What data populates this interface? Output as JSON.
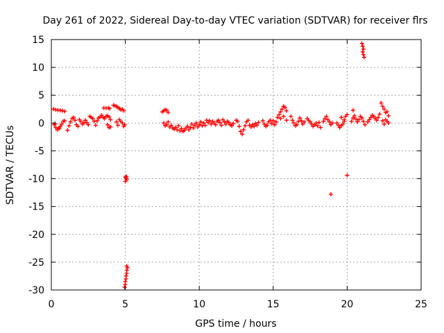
{
  "chart_data": {
    "type": "scatter",
    "title": "Day 261 of 2022, Sidereal Day-to-day VTEC variation (SDTVAR) for receiver flrs",
    "xlabel": "GPS time / hours",
    "ylabel": "SDTVAR / TECUs",
    "xlim": [
      0,
      25
    ],
    "ylim": [
      -30,
      15
    ],
    "xticks": [
      0,
      5,
      10,
      15,
      20,
      25
    ],
    "yticks": [
      -30,
      -25,
      -20,
      -15,
      -10,
      -5,
      0,
      5,
      10,
      15
    ],
    "grid": true,
    "marker": "+",
    "color": "#ff0000",
    "series": [
      {
        "name": "SDTVAR",
        "points": [
          [
            0.15,
            2.5
          ],
          [
            0.3,
            2.4
          ],
          [
            0.45,
            2.3
          ],
          [
            0.6,
            2.3
          ],
          [
            0.75,
            2.2
          ],
          [
            0.9,
            2.1
          ],
          [
            0.2,
            -0.3
          ],
          [
            0.3,
            -0.8
          ],
          [
            0.4,
            -1.2
          ],
          [
            0.5,
            -1.0
          ],
          [
            0.6,
            -0.6
          ],
          [
            0.7,
            -0.2
          ],
          [
            0.8,
            0.3
          ],
          [
            0.9,
            0.4
          ],
          [
            0.25,
            -0.1
          ],
          [
            0.55,
            -0.9
          ],
          [
            1.1,
            -1.3
          ],
          [
            1.2,
            -0.5
          ],
          [
            1.3,
            0.2
          ],
          [
            1.4,
            0.8
          ],
          [
            1.5,
            1.0
          ],
          [
            1.6,
            0.5
          ],
          [
            1.7,
            -0.3
          ],
          [
            1.8,
            -0.6
          ],
          [
            1.9,
            0.6
          ],
          [
            2.0,
            0.3
          ],
          [
            2.1,
            -0.2
          ],
          [
            2.2,
            0.0
          ],
          [
            2.3,
            0.5
          ],
          [
            2.4,
            0.1
          ],
          [
            2.5,
            -0.3
          ],
          [
            2.6,
            1.2
          ],
          [
            2.7,
            1.0
          ],
          [
            2.8,
            0.8
          ],
          [
            2.9,
            0.3
          ],
          [
            3.0,
            -0.4
          ],
          [
            3.1,
            0.4
          ],
          [
            3.2,
            0.9
          ],
          [
            3.3,
            1.1
          ],
          [
            3.4,
            1.4
          ],
          [
            3.5,
            1.0
          ],
          [
            3.6,
            0.8
          ],
          [
            3.7,
            1.2
          ],
          [
            3.8,
            1.3
          ],
          [
            3.9,
            1.1
          ],
          [
            4.0,
            0.6
          ],
          [
            3.55,
            2.7
          ],
          [
            3.7,
            2.7
          ],
          [
            3.85,
            2.7
          ],
          [
            3.95,
            2.6
          ],
          [
            3.8,
            -0.3
          ],
          [
            3.9,
            -0.8
          ],
          [
            4.0,
            -0.7
          ],
          [
            4.2,
            3.2
          ],
          [
            4.3,
            3.1
          ],
          [
            4.4,
            3.0
          ],
          [
            4.5,
            2.8
          ],
          [
            4.6,
            2.6
          ],
          [
            4.7,
            2.4
          ],
          [
            4.8,
            2.5
          ],
          [
            4.9,
            2.2
          ],
          [
            4.4,
            0.2
          ],
          [
            4.5,
            -0.4
          ],
          [
            4.6,
            0.6
          ],
          [
            4.7,
            0.3
          ],
          [
            4.8,
            0.0
          ],
          [
            4.9,
            -0.6
          ],
          [
            4.95,
            -0.3
          ],
          [
            5.0,
            -9.7
          ],
          [
            5.05,
            -9.9
          ],
          [
            5.1,
            -10.2
          ],
          [
            5.0,
            -10.5
          ],
          [
            5.08,
            -9.6
          ],
          [
            4.95,
            -29.5
          ],
          [
            5.0,
            -29.0
          ],
          [
            5.0,
            -28.5
          ],
          [
            5.05,
            -28.0
          ],
          [
            5.05,
            -27.5
          ],
          [
            5.1,
            -27.0
          ],
          [
            5.1,
            -26.5
          ],
          [
            5.15,
            -26.0
          ],
          [
            5.1,
            -25.7
          ],
          [
            7.5,
            2.0
          ],
          [
            7.6,
            2.2
          ],
          [
            7.7,
            2.4
          ],
          [
            7.8,
            2.3
          ],
          [
            7.9,
            1.9
          ],
          [
            7.6,
            0.0
          ],
          [
            7.7,
            -0.5
          ],
          [
            7.8,
            -0.3
          ],
          [
            7.9,
            0.2
          ],
          [
            8.0,
            -0.7
          ],
          [
            8.1,
            -0.4
          ],
          [
            8.2,
            -0.9
          ],
          [
            8.3,
            -1.1
          ],
          [
            8.4,
            -0.8
          ],
          [
            8.5,
            -1.2
          ],
          [
            8.6,
            -0.5
          ],
          [
            8.7,
            -1.4
          ],
          [
            8.8,
            -1.0
          ],
          [
            8.9,
            -1.5
          ],
          [
            9.0,
            -1.3
          ],
          [
            9.1,
            -0.9
          ],
          [
            9.2,
            -0.6
          ],
          [
            9.3,
            -1.2
          ],
          [
            9.4,
            -0.8
          ],
          [
            9.5,
            -0.2
          ],
          [
            9.6,
            -0.9
          ],
          [
            9.7,
            -0.4
          ],
          [
            9.8,
            0.0
          ],
          [
            9.9,
            -0.7
          ],
          [
            10.0,
            -0.3
          ],
          [
            10.1,
            0.2
          ],
          [
            10.2,
            -0.5
          ],
          [
            10.3,
            0.0
          ],
          [
            10.4,
            -0.4
          ],
          [
            10.5,
            0.5
          ],
          [
            10.6,
            0.1
          ],
          [
            10.7,
            0.4
          ],
          [
            10.8,
            -0.2
          ],
          [
            10.9,
            0.3
          ],
          [
            11.0,
            0.0
          ],
          [
            11.1,
            -0.3
          ],
          [
            11.2,
            0.3
          ],
          [
            11.3,
            0.5
          ],
          [
            11.4,
            0.1
          ],
          [
            11.5,
            -0.4
          ],
          [
            11.6,
            0.6
          ],
          [
            11.7,
            0.2
          ],
          [
            11.8,
            -0.2
          ],
          [
            11.9,
            0.3
          ],
          [
            12.0,
            0.1
          ],
          [
            12.1,
            -0.3
          ],
          [
            12.2,
            -0.5
          ],
          [
            12.3,
            -0.1
          ],
          [
            12.5,
            0.5
          ],
          [
            12.6,
            0.3
          ],
          [
            12.7,
            -0.6
          ],
          [
            12.8,
            -1.5
          ],
          [
            12.9,
            -2.0
          ],
          [
            13.0,
            -1.2
          ],
          [
            13.1,
            -0.5
          ],
          [
            13.2,
            0.2
          ],
          [
            13.3,
            0.5
          ],
          [
            13.4,
            -0.4
          ],
          [
            13.5,
            -0.7
          ],
          [
            13.6,
            -0.3
          ],
          [
            13.7,
            -0.6
          ],
          [
            13.8,
            -0.1
          ],
          [
            13.9,
            -0.4
          ],
          [
            14.0,
            0.1
          ],
          [
            14.3,
            0.4
          ],
          [
            14.4,
            -0.2
          ],
          [
            14.5,
            -0.6
          ],
          [
            14.6,
            -0.4
          ],
          [
            14.7,
            0.2
          ],
          [
            14.8,
            0.5
          ],
          [
            14.9,
            -0.1
          ],
          [
            15.0,
            0.4
          ],
          [
            15.1,
            -0.3
          ],
          [
            15.2,
            0.2
          ],
          [
            15.3,
            1.0
          ],
          [
            15.4,
            1.5
          ],
          [
            15.5,
            2.0
          ],
          [
            15.6,
            2.5
          ],
          [
            15.7,
            3.0
          ],
          [
            15.8,
            2.8
          ],
          [
            15.9,
            2.2
          ],
          [
            15.5,
            0.8
          ],
          [
            15.7,
            1.2
          ],
          [
            15.9,
            0.5
          ],
          [
            16.2,
            1.2
          ],
          [
            16.3,
            0.5
          ],
          [
            16.4,
            0.0
          ],
          [
            16.5,
            -0.5
          ],
          [
            16.6,
            -0.3
          ],
          [
            16.7,
            0.3
          ],
          [
            16.8,
            0.9
          ],
          [
            16.9,
            0.4
          ],
          [
            17.0,
            -0.2
          ],
          [
            17.1,
            0.2
          ],
          [
            17.3,
            0.8
          ],
          [
            17.4,
            0.5
          ],
          [
            17.5,
            0.2
          ],
          [
            17.6,
            -0.2
          ],
          [
            17.7,
            -0.6
          ],
          [
            17.8,
            -0.3
          ],
          [
            17.9,
            0.0
          ],
          [
            18.0,
            -0.5
          ],
          [
            18.1,
            0.1
          ],
          [
            18.2,
            -0.8
          ],
          [
            18.4,
            0.3
          ],
          [
            18.5,
            0.8
          ],
          [
            18.6,
            1.2
          ],
          [
            18.7,
            0.6
          ],
          [
            18.8,
            0.2
          ],
          [
            18.9,
            -0.3
          ],
          [
            19.0,
            0.0
          ],
          [
            19.3,
            0.0
          ],
          [
            19.4,
            -0.4
          ],
          [
            19.5,
            -0.8
          ],
          [
            19.6,
            -0.5
          ],
          [
            19.7,
            -0.2
          ],
          [
            19.8,
            0.6
          ],
          [
            19.9,
            1.2
          ],
          [
            20.0,
            1.5
          ],
          [
            19.6,
            1.0
          ],
          [
            19.8,
            0.3
          ],
          [
            20.4,
            2.3
          ],
          [
            20.3,
            0.3
          ],
          [
            20.4,
            0.9
          ],
          [
            20.5,
            1.3
          ],
          [
            20.6,
            0.7
          ],
          [
            20.7,
            0.2
          ],
          [
            20.8,
            0.6
          ],
          [
            20.9,
            1.2
          ],
          [
            21.0,
            0.9
          ],
          [
            21.1,
            0.3
          ],
          [
            21.2,
            -0.3
          ],
          [
            21.4,
            0.2
          ],
          [
            21.5,
            0.6
          ],
          [
            21.6,
            1.0
          ],
          [
            21.7,
            1.4
          ],
          [
            21.8,
            1.2
          ],
          [
            21.9,
            0.8
          ],
          [
            22.0,
            0.5
          ],
          [
            22.1,
            1.0
          ],
          [
            22.2,
            1.6
          ],
          [
            22.3,
            3.6
          ],
          [
            22.4,
            3.0
          ],
          [
            22.5,
            2.5
          ],
          [
            22.6,
            1.9
          ],
          [
            22.4,
            0.4
          ],
          [
            22.5,
            -0.2
          ],
          [
            22.6,
            0.6
          ],
          [
            22.7,
            2.0
          ],
          [
            22.8,
            1.3
          ],
          [
            22.7,
            0.3
          ],
          [
            22.8,
            0.0
          ],
          [
            18.9,
            -12.8
          ],
          [
            20.0,
            -9.4
          ],
          [
            21.0,
            14.3
          ],
          [
            21.05,
            13.8
          ],
          [
            21.1,
            13.3
          ],
          [
            21.05,
            12.8
          ],
          [
            21.1,
            12.3
          ],
          [
            21.15,
            11.8
          ]
        ]
      }
    ]
  }
}
